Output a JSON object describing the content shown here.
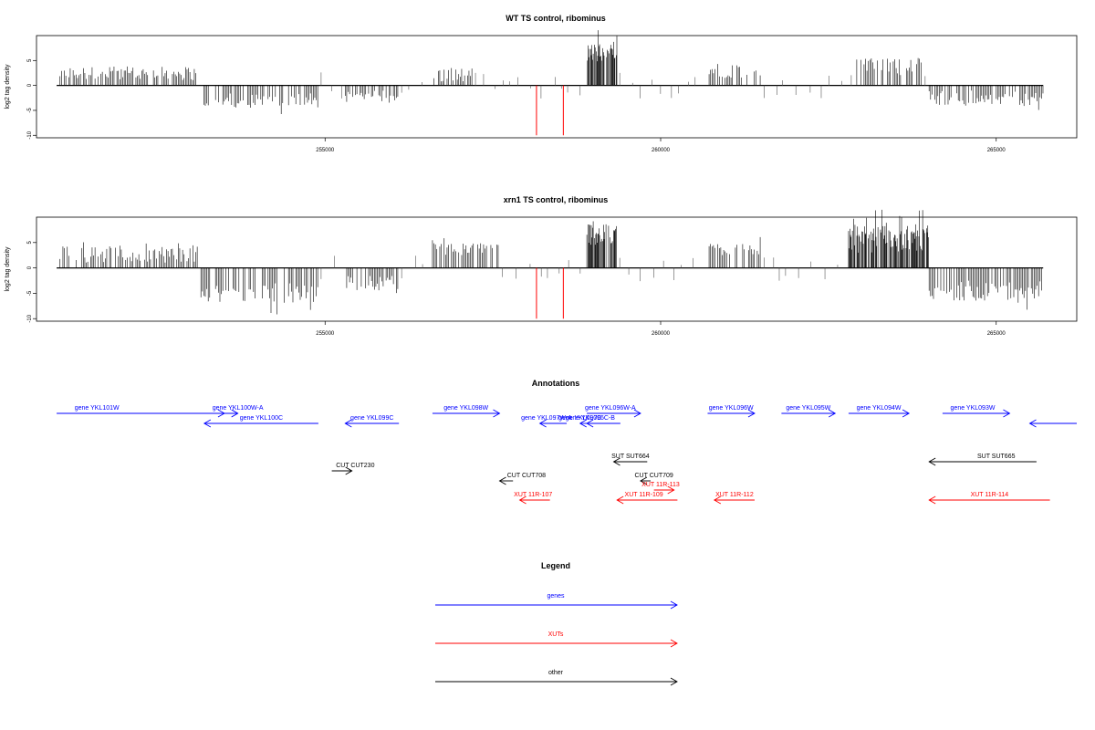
{
  "chart_data": [
    {
      "type": "bar",
      "title": "WT TS control, ribominus",
      "ylabel": "log2 tag density",
      "xlabel": "",
      "xlim": [
        250700,
        266200
      ],
      "ylim": [
        -10.5,
        10
      ],
      "x_ticks": [
        255000,
        260000,
        265000
      ],
      "y_ticks": [
        -10,
        -5,
        0,
        5
      ],
      "grid": false,
      "baseline": [
        251000,
        265700
      ],
      "series": [
        {
          "segments": [
            {
              "x0": 251050,
              "x1": 253100,
              "lo": 1.0,
              "hi": 3.8,
              "sign": 1
            },
            {
              "x0": 253150,
              "x1": 254900,
              "lo": 1.5,
              "hi": 4.5,
              "sign": -1
            },
            {
              "x0": 255300,
              "x1": 256100,
              "lo": 1.0,
              "hi": 3.5,
              "sign": -1
            },
            {
              "x0": 256600,
              "x1": 257200,
              "lo": 0.5,
              "hi": 3.5,
              "sign": 1
            },
            {
              "x0": 258900,
              "x1": 259350,
              "lo": 4.5,
              "hi": 8.5,
              "sign": 1
            },
            {
              "x0": 260700,
              "x1": 261500,
              "lo": 1.5,
              "hi": 4.5,
              "sign": 1
            },
            {
              "x0": 262900,
              "x1": 263900,
              "lo": 2.0,
              "hi": 5.5,
              "sign": 1
            },
            {
              "x0": 264000,
              "x1": 265700,
              "lo": 1.0,
              "hi": 4.0,
              "sign": -1
            }
          ]
        }
      ],
      "red_marks": [
        {
          "x": 258150,
          "value": -10
        },
        {
          "x": 258550,
          "value": -10
        }
      ]
    },
    {
      "type": "bar",
      "title": "xrn1 TS control, ribominus",
      "ylabel": "log2 tag density",
      "xlabel": "",
      "xlim": [
        250700,
        266200
      ],
      "ylim": [
        -10.5,
        10
      ],
      "x_ticks": [
        255000,
        260000,
        265000
      ],
      "y_ticks": [
        -10,
        -5,
        0,
        5
      ],
      "grid": false,
      "baseline": [
        251000,
        265700
      ],
      "series": [
        {
          "segments": [
            {
              "x0": 251050,
              "x1": 253100,
              "lo": 1.0,
              "hi": 4.5,
              "sign": 1
            },
            {
              "x0": 253150,
              "x1": 254900,
              "lo": 3.0,
              "hi": 7.0,
              "sign": -1
            },
            {
              "x0": 255300,
              "x1": 256100,
              "lo": 1.5,
              "hi": 4.5,
              "sign": -1
            },
            {
              "x0": 256600,
              "x1": 257600,
              "lo": 2.5,
              "hi": 5.0,
              "sign": 1
            },
            {
              "x0": 258900,
              "x1": 259350,
              "lo": 4.5,
              "hi": 9.0,
              "sign": 1
            },
            {
              "x0": 260700,
              "x1": 261500,
              "lo": 2.5,
              "hi": 5.0,
              "sign": 1
            },
            {
              "x0": 262800,
              "x1": 264000,
              "lo": 3.0,
              "hi": 8.5,
              "sign": 1
            },
            {
              "x0": 264000,
              "x1": 265700,
              "lo": 2.5,
              "hi": 6.5,
              "sign": -1
            }
          ]
        }
      ],
      "red_marks": [
        {
          "x": 258150,
          "value": -10
        },
        {
          "x": 258550,
          "value": -10
        }
      ]
    }
  ],
  "annotations": {
    "title": "Annotations",
    "items": [
      {
        "label": "gene YKL101W",
        "cat": "gene",
        "x0": 251000,
        "x1": 253500,
        "dir": "right",
        "row": 1,
        "label_at": 251600
      },
      {
        "label": "gene YKL100W-A",
        "cat": "gene",
        "x0": 253300,
        "x1": 253700,
        "dir": "right",
        "row": 1,
        "label_at": 253700
      },
      {
        "label": "gene YKL100C",
        "cat": "gene",
        "x0": 253200,
        "x1": 254900,
        "dir": "left",
        "row": 2,
        "label_at": 254050
      },
      {
        "label": "gene YKL099C",
        "cat": "gene",
        "x0": 255300,
        "x1": 256100,
        "dir": "left",
        "row": 2,
        "label_at": 255700
      },
      {
        "label": "gene YKL098W",
        "cat": "gene",
        "x0": 256600,
        "x1": 257600,
        "dir": "right",
        "row": 1,
        "label_at": 257100
      },
      {
        "label": "gene YKL097W-A",
        "cat": "gene",
        "x0": 258200,
        "x1": 258600,
        "dir": "left",
        "row": 2,
        "label_at": 258300
      },
      {
        "label": "gene YKL097C",
        "cat": "gene",
        "x0": 258800,
        "x1": 259000,
        "dir": "left",
        "row": 2,
        "label_at": 258800
      },
      {
        "label": "gene YKL096C-B",
        "cat": "gene",
        "x0": 258900,
        "x1": 259400,
        "dir": "left",
        "row": 2,
        "label_at": 258950
      },
      {
        "label": "gene YKL096W-A",
        "cat": "gene",
        "x0": 258900,
        "x1": 259700,
        "dir": "right",
        "row": 1,
        "label_at": 259250
      },
      {
        "label": "gene YKL096W",
        "cat": "gene",
        "x0": 260700,
        "x1": 261400,
        "dir": "right",
        "row": 1,
        "label_at": 261050
      },
      {
        "label": "gene YKL095W",
        "cat": "gene",
        "x0": 261800,
        "x1": 262600,
        "dir": "right",
        "row": 1,
        "label_at": 262200
      },
      {
        "label": "gene YKL094W",
        "cat": "gene",
        "x0": 262800,
        "x1": 263700,
        "dir": "right",
        "row": 1,
        "label_at": 263250
      },
      {
        "label": "gene YKL093W",
        "cat": "gene",
        "x0": 264200,
        "x1": 265200,
        "dir": "right",
        "row": 1,
        "label_at": 264650
      },
      {
        "label": "",
        "cat": "gene",
        "x0": 265500,
        "x1": 266200,
        "dir": "left",
        "row": 2,
        "label_at": 265800
      },
      {
        "label": "SUT SUT664",
        "cat": "other",
        "x0": 259300,
        "x1": 259800,
        "dir": "left",
        "row": 3,
        "label_at": 259550
      },
      {
        "label": "SUT SUT665",
        "cat": "other",
        "x0": 264000,
        "x1": 265600,
        "dir": "left",
        "row": 3,
        "label_at": 265000
      },
      {
        "label": "CUT CUT230",
        "cat": "other",
        "x0": 255100,
        "x1": 255400,
        "dir": "right",
        "row": 4,
        "label_at": 255450
      },
      {
        "label": "CUT CUT708",
        "cat": "other",
        "x0": 257600,
        "x1": 257800,
        "dir": "left",
        "row": 5,
        "label_at": 258000
      },
      {
        "label": "CUT CUT709",
        "cat": "other",
        "x0": 259700,
        "x1": 259850,
        "dir": "left",
        "row": 5,
        "label_at": 259900
      },
      {
        "label": "XUT 11R-113",
        "cat": "xut",
        "x0": 259900,
        "x1": 260200,
        "dir": "right",
        "row": 6,
        "label_at": 260000
      },
      {
        "label": "XUT 11R-107",
        "cat": "xut",
        "x0": 257900,
        "x1": 258350,
        "dir": "left",
        "row": 7,
        "label_at": 258100
      },
      {
        "label": "XUT 11R-109",
        "cat": "xut",
        "x0": 259350,
        "x1": 260250,
        "dir": "left",
        "row": 7,
        "label_at": 259750
      },
      {
        "label": "XUT 11R-112",
        "cat": "xut",
        "x0": 260800,
        "x1": 261400,
        "dir": "left",
        "row": 7,
        "label_at": 261100
      },
      {
        "label": "XUT 11R-114",
        "cat": "xut",
        "x0": 264000,
        "x1": 265800,
        "dir": "left",
        "row": 7,
        "label_at": 264900
      }
    ]
  },
  "legend": {
    "title": "Legend",
    "entries": [
      {
        "label": "genes",
        "color": "#0000ff"
      },
      {
        "label": "XUTs",
        "color": "#ff0000"
      },
      {
        "label": "other",
        "color": "#000000"
      }
    ]
  },
  "colors": {
    "gene": "#0000ff",
    "xut": "#ff0000",
    "other": "#000000",
    "coverage": "#000000",
    "mark": "#ff0000"
  }
}
